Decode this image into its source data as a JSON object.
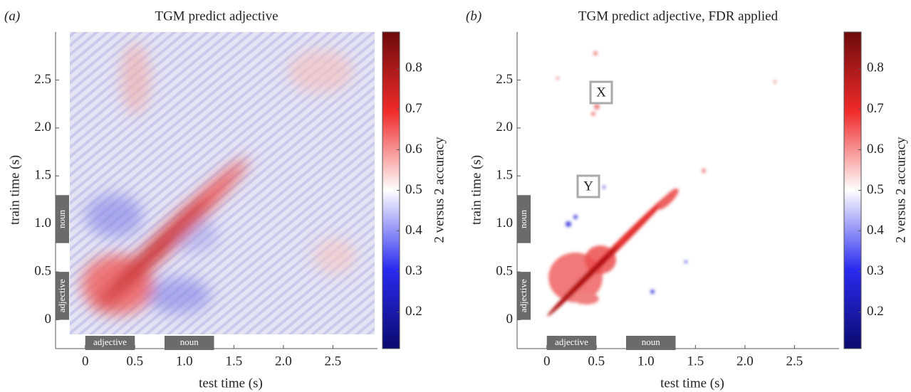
{
  "chart_data": [
    {
      "type": "heatmap",
      "panel_label": "(a)",
      "title": "TGM predict adjective",
      "xlabel": "test time (s)",
      "ylabel": "train time (s)",
      "xlim": [
        -0.3,
        2.95
      ],
      "ylim": [
        -0.3,
        3.0
      ],
      "xticks": [
        0,
        0.5,
        {
          "value": 1,
          "label": "1.0"
        },
        1.5,
        {
          "value": 2,
          "label": "2.0"
        },
        2.5
      ],
      "yticks": [
        0,
        0.5,
        {
          "value": 1,
          "label": "1.0"
        },
        1.5,
        {
          "value": 2,
          "label": "2.0"
        },
        2.5
      ],
      "events": [
        {
          "label": "adjective",
          "start": 0,
          "end": 0.5
        },
        {
          "label": "noun",
          "start": 0.8,
          "end": 1.3
        }
      ],
      "colorbar": {
        "label": "2 versus 2 accuracy",
        "lim": [
          0.11,
          0.89
        ],
        "ticks": [
          0.2,
          0.3,
          0.4,
          0.5,
          0.6,
          0.7,
          0.8
        ]
      },
      "annotations": []
    },
    {
      "type": "heatmap",
      "panel_label": "(b)",
      "title": "TGM predict adjective, FDR applied",
      "xlabel": "test time (s)",
      "ylabel": "train time (s)",
      "xlim": [
        -0.3,
        2.95
      ],
      "ylim": [
        -0.3,
        3.0
      ],
      "xticks": [
        0,
        0.5,
        {
          "value": 1,
          "label": "1.0"
        },
        1.5,
        {
          "value": 2,
          "label": "2.0"
        },
        2.5
      ],
      "yticks": [
        0,
        0.5,
        {
          "value": 1,
          "label": "1.0"
        },
        1.5,
        {
          "value": 2,
          "label": "2.0"
        },
        2.5
      ],
      "events": [
        {
          "label": "adjective",
          "start": 0,
          "end": 0.5
        },
        {
          "label": "noun",
          "start": 0.8,
          "end": 1.3
        }
      ],
      "colorbar": {
        "label": "2 versus 2 accuracy",
        "lim": [
          0.11,
          0.89
        ],
        "ticks": [
          0.2,
          0.3,
          0.4,
          0.5,
          0.6,
          0.7,
          0.8
        ]
      },
      "annotations": [
        "X",
        "Y"
      ]
    }
  ]
}
